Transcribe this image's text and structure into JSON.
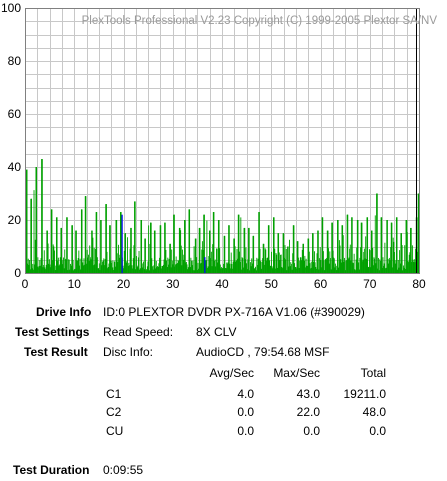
{
  "chart_data": {
    "type": "bar",
    "watermark": "PlexTools Professional V2.23 Copyright (C) 1999-2005 Plextor SA/NV",
    "x_ticks": [
      "0",
      "10",
      "20",
      "30",
      "40",
      "50",
      "60",
      "70",
      "80"
    ],
    "y_ticks": [
      "0",
      "20",
      "40",
      "60",
      "80",
      "100"
    ],
    "xlim": [
      0,
      80
    ],
    "ylim": [
      0,
      100
    ],
    "grid": true,
    "colors": {
      "c1": "#00a000",
      "c2": "#0000ff",
      "marker": "#000000",
      "grid": "#c8c8c8"
    },
    "end_marker_x": 80,
    "series": [
      {
        "key": "c1",
        "peaks": [
          [
            0.3,
            39
          ],
          [
            1.2,
            28
          ],
          [
            2.2,
            40
          ],
          [
            3.3,
            43
          ],
          [
            4.4,
            16
          ],
          [
            5.3,
            24
          ],
          [
            6.4,
            21
          ],
          [
            7.3,
            17
          ],
          [
            8.4,
            21
          ],
          [
            9.5,
            18
          ],
          [
            10.3,
            16
          ],
          [
            11.4,
            24
          ],
          [
            12.2,
            29
          ],
          [
            13.5,
            16
          ],
          [
            14.4,
            23
          ],
          [
            15.3,
            20
          ],
          [
            16.4,
            26
          ],
          [
            17.2,
            18
          ],
          [
            18.5,
            20
          ],
          [
            19.4,
            23
          ],
          [
            20.3,
            15
          ],
          [
            21.4,
            17
          ],
          [
            22.2,
            27
          ],
          [
            23.5,
            20
          ],
          [
            24.3,
            13
          ],
          [
            25.4,
            19
          ],
          [
            26.3,
            16
          ],
          [
            27.4,
            18
          ],
          [
            28.3,
            19
          ],
          [
            29.4,
            11
          ],
          [
            30.2,
            22
          ],
          [
            31.3,
            17
          ],
          [
            32.4,
            20
          ],
          [
            33.3,
            24
          ],
          [
            34.5,
            13
          ],
          [
            35.4,
            17
          ],
          [
            36.3,
            22
          ],
          [
            37.4,
            16
          ],
          [
            38.2,
            23
          ],
          [
            39.3,
            20
          ],
          [
            40.4,
            14
          ],
          [
            41.3,
            18
          ],
          [
            42.4,
            13
          ],
          [
            43.3,
            22
          ],
          [
            44.5,
            17
          ],
          [
            45.4,
            17
          ],
          [
            46.3,
            14
          ],
          [
            47.4,
            23
          ],
          [
            48.3,
            11
          ],
          [
            49.4,
            18
          ],
          [
            50.4,
            21
          ],
          [
            51.3,
            15
          ],
          [
            52.4,
            15
          ],
          [
            53.3,
            10
          ],
          [
            54.4,
            18
          ],
          [
            55.3,
            12
          ],
          [
            56.4,
            11
          ],
          [
            57.4,
            13
          ],
          [
            58.3,
            15
          ],
          [
            59.4,
            16
          ],
          [
            60.3,
            21
          ],
          [
            61.4,
            16
          ],
          [
            62.3,
            19
          ],
          [
            63.4,
            20
          ],
          [
            64.3,
            18
          ],
          [
            65.4,
            22
          ],
          [
            66.3,
            21
          ],
          [
            67.4,
            20
          ],
          [
            68.3,
            19
          ],
          [
            69.4,
            21
          ],
          [
            70.3,
            16
          ],
          [
            71.4,
            30
          ],
          [
            72.3,
            21
          ],
          [
            73.4,
            20
          ],
          [
            74.3,
            19
          ],
          [
            75.4,
            21
          ],
          [
            76.3,
            15
          ],
          [
            77.4,
            20
          ],
          [
            78.3,
            17
          ],
          [
            79.4,
            21
          ],
          [
            79.8,
            30
          ]
        ]
      },
      {
        "key": "c2",
        "peaks": [
          [
            19.6,
            22
          ],
          [
            36.4,
            6
          ]
        ]
      }
    ]
  },
  "info": {
    "drive_label": "Drive Info",
    "drive_value": "ID:0 PLEXTOR DVDR PX-716A V1.06 (#390029)",
    "settings_label": "Test Settings",
    "read_speed_label": "Read Speed:",
    "read_speed_value": "8X CLV",
    "result_label": "Test Result",
    "disc_info_label": "Disc Info:",
    "disc_info_value": "AudioCD , 79:54.68 MSF",
    "col_avg": "Avg/Sec",
    "col_max": "Max/Sec",
    "col_total": "Total",
    "rows": [
      {
        "name": "C1",
        "avg": "4.0",
        "max": "43.0",
        "total": "19211.0"
      },
      {
        "name": "C2",
        "avg": "0.0",
        "max": "22.0",
        "total": "48.0"
      },
      {
        "name": "CU",
        "avg": "0.0",
        "max": "0.0",
        "total": "0.0"
      }
    ],
    "duration_label": "Test Duration",
    "duration_value": "0:09:55"
  }
}
